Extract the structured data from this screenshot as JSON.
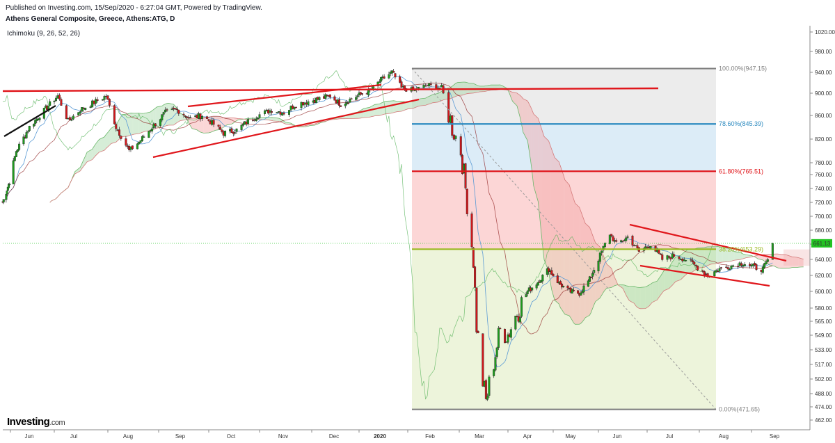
{
  "header": {
    "published": "Published on Investing.com, 15/Sep/2020 - 6:27:04 GMT, Powered by TradingView.",
    "title": "Athens General Composite, Greece, Athens:ATG, D"
  },
  "indicator_label": "Ichimoku (9, 26, 52, 26)",
  "brand": {
    "name": "Investing",
    "suffix": ".com"
  },
  "colors": {
    "up": "#1e9c1e",
    "down": "#d0171b",
    "trendline": "#e0161b",
    "fib_100": "#808080",
    "fib_786": "#2e8bc0",
    "fib_618": "#e0161b",
    "fib_382": "#9ab820",
    "fib_0": "#808080",
    "last_price": "#22c322"
  },
  "chart_data": {
    "type": "candlestick",
    "y_axis": {
      "min": 462,
      "max": 1020,
      "scale": "log",
      "side": "right",
      "ticks": [
        "1020.00",
        "980.00",
        "940.00",
        "900.00",
        "860.00",
        "820.00",
        "780.00",
        "760.00",
        "740.00",
        "720.00",
        "700.00",
        "680.00",
        "660.00",
        "640.00",
        "620.00",
        "600.00",
        "580.00",
        "565.00",
        "549.00",
        "533.00",
        "517.00",
        "502.00",
        "488.00",
        "474.00",
        "462.00"
      ]
    },
    "x_axis": {
      "labels": [
        "Jun",
        "Jul",
        "Aug",
        "Sep",
        "Oct",
        "Nov",
        "Dec",
        "2020",
        "Feb",
        "Mar",
        "Apr",
        "May",
        "Jun",
        "Jul",
        "Aug",
        "Sep"
      ]
    },
    "last_price": "661.13",
    "fibonacci": [
      {
        "label": "100.00%(947.15)",
        "value": 947.15
      },
      {
        "label": "78.60%(845.39)",
        "value": 845.39
      },
      {
        "label": "61.80%(765.51)",
        "value": 765.51
      },
      {
        "label": "38.20%(653.29)",
        "value": 653.29
      },
      {
        "label": "0.00%(471.65)",
        "value": 471.65
      }
    ],
    "monthly_closes": [
      {
        "month": "Jun 2019",
        "close": 855
      },
      {
        "month": "Jul 2019",
        "close": 880
      },
      {
        "month": "Aug 2019",
        "close": 815
      },
      {
        "month": "Sep 2019",
        "close": 860
      },
      {
        "month": "Oct 2019",
        "close": 830
      },
      {
        "month": "Nov 2019",
        "close": 875
      },
      {
        "month": "Dec 2019",
        "close": 895
      },
      {
        "month": "Jan 2020",
        "close": 940
      },
      {
        "month": "Feb 2020",
        "close": 880
      },
      {
        "month": "Mar 2020",
        "close": 475
      },
      {
        "month": "Apr 2020",
        "close": 615
      },
      {
        "month": "May 2020",
        "close": 600
      },
      {
        "month": "Jun 2020",
        "close": 665
      },
      {
        "month": "Jul 2020",
        "close": 645
      },
      {
        "month": "Aug 2020",
        "close": 630
      },
      {
        "month": "Sep 2020",
        "close": 661.13
      }
    ]
  }
}
